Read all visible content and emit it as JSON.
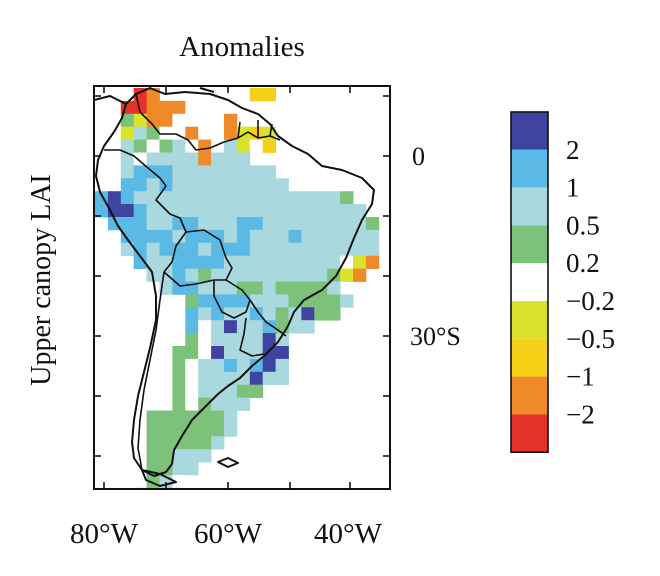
{
  "title": "Anomalies",
  "side_label": "Upper canopy LAI",
  "x_tick_labels": [
    "80°W",
    "60°W",
    "40°W"
  ],
  "y_tick_labels": [
    "0",
    "30°S"
  ],
  "legend": {
    "labels": [
      "2",
      "1",
      "0.5",
      "0.2",
      "−0.2",
      "−0.5",
      "−1",
      "−2"
    ],
    "colors": [
      "#3e44a0",
      "#5bb9e6",
      "#a9d9de",
      "#7dc27a",
      "#ffffff",
      "#d9e32c",
      "#f7d117",
      "#ee8a29",
      "#e53228"
    ]
  }
}
